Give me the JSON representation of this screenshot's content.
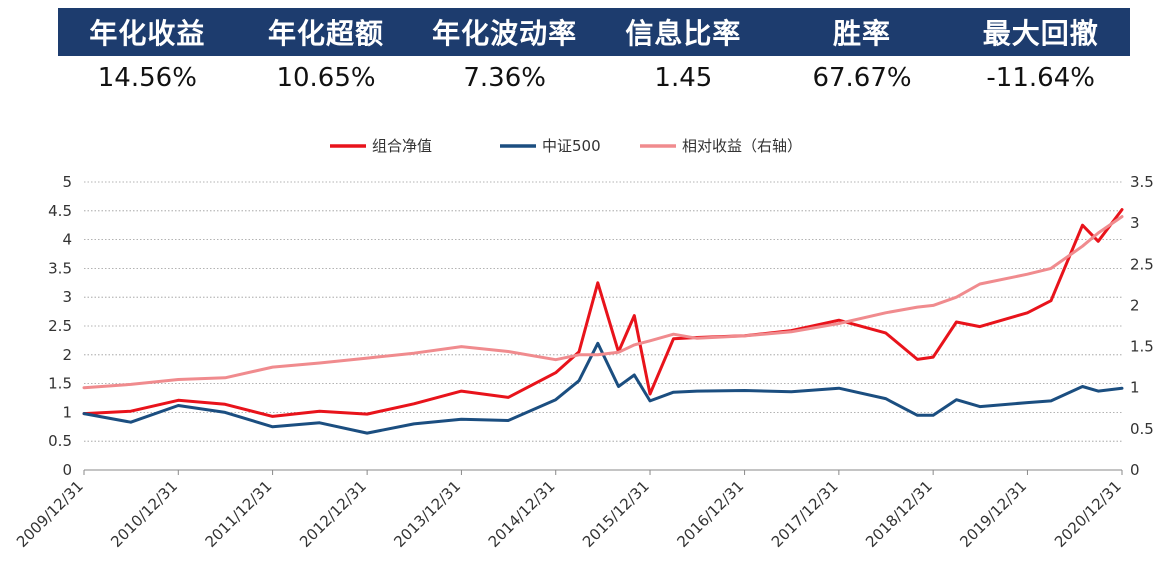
{
  "stats": {
    "headers": [
      "年化收益",
      "年化超额",
      "年化波动率",
      "信息比率",
      "胜率",
      "最大回撤"
    ],
    "values": [
      "14.56%",
      "10.65%",
      "7.36%",
      "1.45",
      "67.67%",
      "-11.64%"
    ],
    "header_bg": "#1d3c6e"
  },
  "chart_data": {
    "type": "line",
    "legend": {
      "position": "top-center"
    },
    "grid": true,
    "x_ticks": [
      "2009/12/31",
      "2010/12/31",
      "2011/12/31",
      "2012/12/31",
      "2013/12/31",
      "2014/12/31",
      "2015/12/31",
      "2016/12/31",
      "2017/12/31",
      "2018/12/31",
      "2019/12/31",
      "2020/12/31"
    ],
    "xlim": [
      "2009/12/31",
      "2020/12/31"
    ],
    "y_left": {
      "ticks": [
        "0",
        "0.5",
        "1",
        "1.5",
        "2",
        "2.5",
        "3",
        "3.5",
        "4",
        "4.5",
        "5"
      ],
      "lim": [
        0,
        5
      ]
    },
    "y_right": {
      "ticks": [
        "0",
        "0.5",
        "1",
        "1.5",
        "2",
        "2.5",
        "3",
        "3.5"
      ],
      "lim": [
        0,
        3.5
      ]
    },
    "series": [
      {
        "name": "组合净值",
        "color": "#e8131b",
        "axis": "left",
        "x": [
          "2009/12/31",
          "2010/06/30",
          "2010/12/31",
          "2011/06/30",
          "2011/12/31",
          "2012/06/30",
          "2012/12/31",
          "2013/06/30",
          "2013/12/31",
          "2014/06/30",
          "2014/12/31",
          "2015/03/31",
          "2015/06/12",
          "2015/08/31",
          "2015/10/31",
          "2015/12/31",
          "2016/03/31",
          "2016/06/30",
          "2016/12/31",
          "2017/06/30",
          "2017/12/31",
          "2018/06/30",
          "2018/10/31",
          "2018/12/31",
          "2019/03/31",
          "2019/06/30",
          "2019/12/31",
          "2020/03/31",
          "2020/07/31",
          "2020/09/30",
          "2020/12/31"
        ],
        "y": [
          0.98,
          1.02,
          1.21,
          1.14,
          0.93,
          1.02,
          0.97,
          1.15,
          1.37,
          1.26,
          1.69,
          2.05,
          3.25,
          2.05,
          2.68,
          1.32,
          2.28,
          2.3,
          2.33,
          2.42,
          2.6,
          2.38,
          1.92,
          1.96,
          2.57,
          2.49,
          2.73,
          2.94,
          4.25,
          3.97,
          4.52
        ]
      },
      {
        "name": "中证500",
        "color": "#1b4e80",
        "axis": "left",
        "x": [
          "2009/12/31",
          "2010/06/30",
          "2010/12/31",
          "2011/06/30",
          "2011/12/31",
          "2012/06/30",
          "2012/12/31",
          "2013/06/30",
          "2013/12/31",
          "2014/06/30",
          "2014/12/31",
          "2015/03/31",
          "2015/06/12",
          "2015/08/31",
          "2015/10/31",
          "2015/12/31",
          "2016/03/31",
          "2016/06/30",
          "2016/12/31",
          "2017/06/30",
          "2017/12/31",
          "2018/06/30",
          "2018/10/31",
          "2018/12/31",
          "2019/03/31",
          "2019/06/30",
          "2019/12/31",
          "2020/03/31",
          "2020/07/31",
          "2020/09/30",
          "2020/12/31"
        ],
        "y": [
          0.98,
          0.83,
          1.12,
          1.0,
          0.75,
          0.82,
          0.64,
          0.8,
          0.88,
          0.86,
          1.22,
          1.55,
          2.2,
          1.45,
          1.65,
          1.2,
          1.35,
          1.37,
          1.38,
          1.36,
          1.42,
          1.24,
          0.95,
          0.95,
          1.22,
          1.1,
          1.17,
          1.2,
          1.45,
          1.37,
          1.42
        ]
      },
      {
        "name": "相对收益（右轴）",
        "color": "#f08b8e",
        "axis": "right",
        "x": [
          "2009/12/31",
          "2010/06/30",
          "2010/12/31",
          "2011/06/30",
          "2011/12/31",
          "2012/06/30",
          "2012/12/31",
          "2013/06/30",
          "2013/12/31",
          "2014/06/30",
          "2014/12/31",
          "2015/03/31",
          "2015/06/12",
          "2015/08/31",
          "2015/10/31",
          "2015/12/31",
          "2016/03/31",
          "2016/06/30",
          "2016/12/31",
          "2017/06/30",
          "2017/12/31",
          "2018/06/30",
          "2018/10/31",
          "2018/12/31",
          "2019/03/31",
          "2019/06/30",
          "2019/12/31",
          "2020/03/31",
          "2020/07/31",
          "2020/09/30",
          "2020/12/31"
        ],
        "y": [
          1.0,
          1.04,
          1.1,
          1.12,
          1.25,
          1.3,
          1.36,
          1.42,
          1.5,
          1.44,
          1.34,
          1.4,
          1.4,
          1.43,
          1.52,
          1.57,
          1.65,
          1.6,
          1.63,
          1.68,
          1.78,
          1.91,
          1.98,
          2.0,
          2.1,
          2.26,
          2.38,
          2.45,
          2.72,
          2.88,
          3.08
        ]
      }
    ]
  }
}
